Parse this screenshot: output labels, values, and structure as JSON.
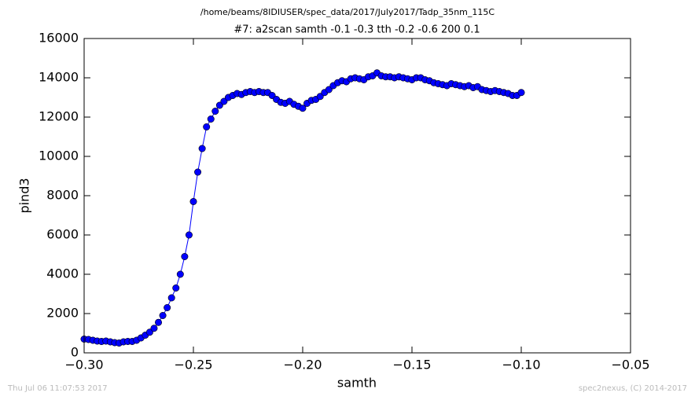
{
  "chart_data": {
    "type": "line",
    "suptitle": "/home/beams/8IDIUSER/spec_data/2017/July2017/Tadp_35nm_115C",
    "title": "#7: a2scan  samth -0.1 -0.3  tth -0.2 -0.6  200 0.1",
    "xlabel": "samth",
    "ylabel": "pind3",
    "footer_left": "Thu Jul 06 11:07:53 2017",
    "footer_right": "spec2nexus, (C) 2014-2017",
    "x": [
      -0.3,
      -0.298,
      -0.296,
      -0.294,
      -0.292,
      -0.29,
      -0.288,
      -0.286,
      -0.284,
      -0.282,
      -0.28,
      -0.278,
      -0.276,
      -0.274,
      -0.272,
      -0.27,
      -0.268,
      -0.266,
      -0.264,
      -0.262,
      -0.26,
      -0.258,
      -0.256,
      -0.254,
      -0.252,
      -0.25,
      -0.248,
      -0.246,
      -0.244,
      -0.242,
      -0.24,
      -0.238,
      -0.236,
      -0.234,
      -0.232,
      -0.23,
      -0.228,
      -0.226,
      -0.224,
      -0.222,
      -0.22,
      -0.218,
      -0.216,
      -0.214,
      -0.212,
      -0.21,
      -0.208,
      -0.206,
      -0.204,
      -0.202,
      -0.2,
      -0.198,
      -0.196,
      -0.194,
      -0.192,
      -0.19,
      -0.188,
      -0.186,
      -0.184,
      -0.182,
      -0.18,
      -0.178,
      -0.176,
      -0.174,
      -0.172,
      -0.17,
      -0.168,
      -0.166,
      -0.164,
      -0.162,
      -0.16,
      -0.158,
      -0.156,
      -0.154,
      -0.152,
      -0.15,
      -0.148,
      -0.146,
      -0.144,
      -0.142,
      -0.14,
      -0.138,
      -0.136,
      -0.134,
      -0.132,
      -0.13,
      -0.128,
      -0.126,
      -0.124,
      -0.122,
      -0.12,
      -0.118,
      -0.116,
      -0.114,
      -0.112,
      -0.11,
      -0.108,
      -0.106,
      -0.104,
      -0.102,
      -0.1
    ],
    "series": [
      {
        "name": "pind3",
        "color": "#0000ff",
        "values": [
          700,
          680,
          640,
          600,
          580,
          600,
          560,
          520,
          500,
          560,
          580,
          580,
          640,
          760,
          900,
          1050,
          1250,
          1550,
          1900,
          2300,
          2800,
          3300,
          4000,
          4900,
          6000,
          7700,
          9200,
          10400,
          11500,
          11900,
          12300,
          12600,
          12800,
          13000,
          13100,
          13200,
          13150,
          13250,
          13300,
          13250,
          13300,
          13250,
          13250,
          13100,
          12900,
          12750,
          12700,
          12800,
          12650,
          12550,
          12450,
          12700,
          12850,
          12900,
          13050,
          13250,
          13400,
          13600,
          13750,
          13850,
          13800,
          13950,
          14000,
          13950,
          13900,
          14050,
          14100,
          14250,
          14100,
          14050,
          14050,
          14000,
          14050,
          14000,
          13950,
          13900,
          14000,
          14000,
          13900,
          13850,
          13750,
          13700,
          13650,
          13600,
          13700,
          13650,
          13600,
          13550,
          13600,
          13500,
          13550,
          13400,
          13350,
          13300,
          13350,
          13300,
          13250,
          13200,
          13100,
          13100,
          13250
        ]
      }
    ],
    "xlim": [
      -0.3,
      -0.05
    ],
    "xticks": [
      {
        "value": -0.3,
        "label": "−0.30"
      },
      {
        "value": -0.25,
        "label": "−0.25"
      },
      {
        "value": -0.2,
        "label": "−0.20"
      },
      {
        "value": -0.15,
        "label": "−0.15"
      },
      {
        "value": -0.1,
        "label": "−0.10"
      },
      {
        "value": -0.05,
        "label": "−0.05"
      }
    ],
    "ylim": [
      0,
      16000
    ],
    "yticks": [
      0,
      2000,
      4000,
      6000,
      8000,
      10000,
      12000,
      14000,
      16000
    ]
  }
}
